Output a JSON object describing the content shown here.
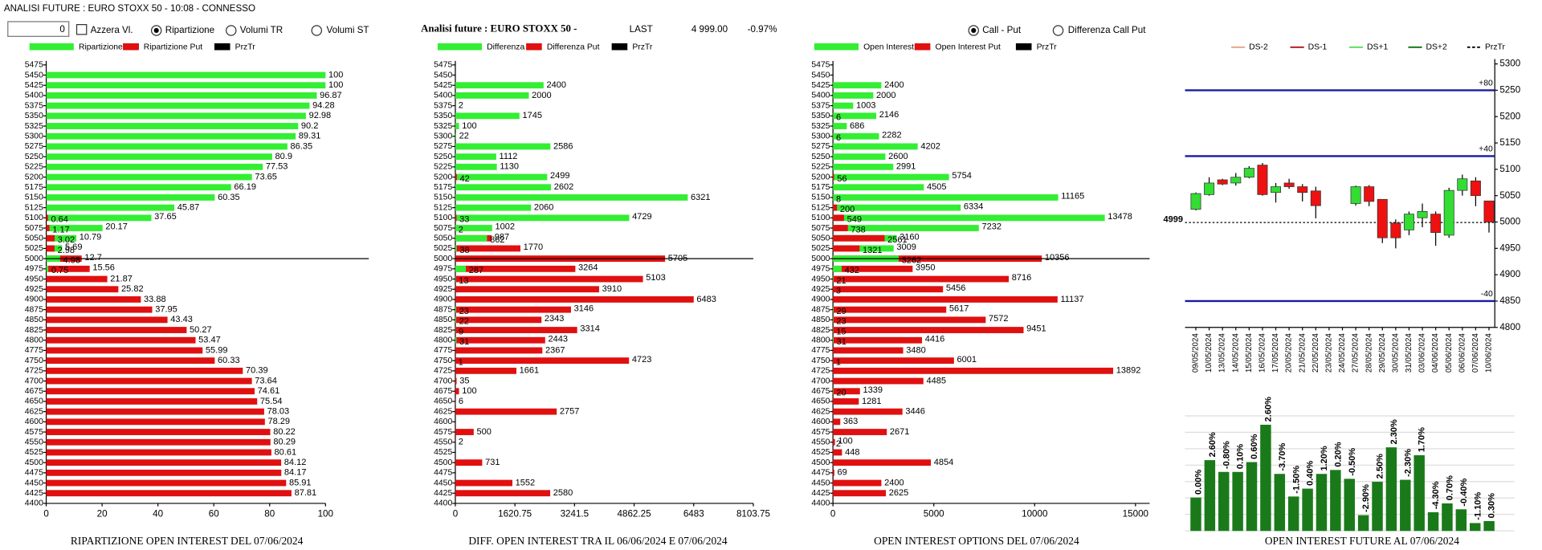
{
  "header": {
    "title": "ANALISI FUTURE : EURO STOXX 50 - 10:08 - CONNESSO",
    "input": "0",
    "checkbox": "Azzera Vl.",
    "radios": [
      "Ripartizione",
      "Volumi TR",
      "Volumi ST"
    ],
    "quote": {
      "label": "Analisi future : EURO STOXX 50 -",
      "last_label": "LAST",
      "last": "4 999.00",
      "change": "-0.97%"
    },
    "view_radios": [
      "Call - Put",
      "Differenza Call Put"
    ]
  },
  "chart_data": [
    {
      "type": "hbar",
      "title": "RIPARTIZIONE OPEN INTEREST DEL 07/06/2024",
      "categories": [
        5475,
        5450,
        5425,
        5400,
        5375,
        5350,
        5325,
        5300,
        5275,
        5250,
        5225,
        5200,
        5175,
        5150,
        5125,
        5100,
        5075,
        5050,
        5025,
        5000,
        4975,
        4950,
        4925,
        4900,
        4875,
        4850,
        4825,
        4800,
        4775,
        4750,
        4725,
        4700,
        4675,
        4650,
        4625,
        4600,
        4575,
        4550,
        4525,
        4500,
        4475,
        4450,
        4425,
        4400
      ],
      "series": [
        {
          "name": "Ripartizione Call",
          "color": "#33ee33",
          "values": [
            null,
            100,
            100,
            96.87,
            94.28,
            92.98,
            90.2,
            89.31,
            86.35,
            80.9,
            77.53,
            73.65,
            66.19,
            60.35,
            45.87,
            37.65,
            20.17,
            10.79,
            5.69,
            4.98,
            0.75,
            null,
            null,
            null,
            null,
            null,
            null,
            null,
            null,
            null,
            null,
            null,
            null,
            null,
            null,
            null,
            null,
            null,
            null,
            null,
            null,
            null,
            null,
            null
          ]
        },
        {
          "name": "Ripartizione Put",
          "color": "#e01010",
          "values": [
            null,
            null,
            null,
            null,
            null,
            null,
            null,
            null,
            null,
            null,
            null,
            null,
            null,
            null,
            null,
            0.64,
            1.17,
            3.02,
            2.98,
            12.7,
            15.56,
            21.87,
            25.82,
            33.88,
            37.95,
            43.43,
            50.27,
            53.47,
            55.99,
            60.33,
            70.39,
            73.64,
            74.61,
            75.54,
            78.03,
            78.29,
            80.22,
            80.29,
            80.61,
            84.12,
            84.17,
            85.91,
            87.81,
            null
          ]
        }
      ],
      "reference": {
        "name": "PrzTr",
        "color": "#000000",
        "category": 5000
      },
      "xlim": [
        0,
        100
      ],
      "xticks": [
        0,
        20,
        40,
        60,
        80,
        100
      ]
    },
    {
      "type": "hbar",
      "title": "DIFF. OPEN INTEREST TRA IL 06/06/2024 E 07/06/2024",
      "categories": [
        5475,
        5450,
        5425,
        5400,
        5375,
        5350,
        5325,
        5300,
        5275,
        5250,
        5225,
        5200,
        5175,
        5150,
        5125,
        5100,
        5075,
        5050,
        5025,
        5000,
        4975,
        4950,
        4925,
        4900,
        4875,
        4850,
        4825,
        4800,
        4775,
        4750,
        4725,
        4700,
        4675,
        4650,
        4625,
        4600,
        4575,
        4550,
        4525,
        4500,
        4475,
        4450,
        4425,
        4400
      ],
      "series": [
        {
          "name": "Differenza Call",
          "color": "#33ee33",
          "values": [
            null,
            null,
            2400,
            2000,
            2,
            1745,
            100,
            22,
            2586,
            1112,
            1130,
            2499,
            2602,
            6321,
            2060,
            4729,
            1002,
            862,
            38,
            null,
            287,
            13,
            null,
            null,
            23,
            22,
            9,
            31,
            null,
            1,
            null,
            null,
            null,
            null,
            null,
            null,
            null,
            null,
            null,
            null,
            null,
            null,
            null,
            null
          ]
        },
        {
          "name": "Differenza Put",
          "color": "#e01010",
          "values": [
            null,
            null,
            null,
            null,
            null,
            null,
            null,
            null,
            null,
            null,
            null,
            42,
            null,
            null,
            null,
            33,
            2,
            987,
            1770,
            5705,
            3264,
            5103,
            3910,
            6483,
            3146,
            2343,
            3314,
            2443,
            2367,
            4723,
            1661,
            35,
            100,
            6,
            2757,
            null,
            500,
            2,
            null,
            731,
            null,
            1552,
            2580,
            null
          ]
        }
      ],
      "reference": {
        "name": "PrzTr",
        "color": "#000000",
        "category": 5000
      },
      "xlim": [
        0,
        8103.75
      ],
      "xticks": [
        0,
        1620.75,
        3241.5,
        4862.25,
        6483,
        8103.75
      ]
    },
    {
      "type": "hbar",
      "title": "OPEN INTEREST OPTIONS DEL 07/06/2024",
      "categories": [
        5475,
        5450,
        5425,
        5400,
        5375,
        5350,
        5325,
        5300,
        5275,
        5250,
        5225,
        5200,
        5175,
        5150,
        5125,
        5100,
        5075,
        5050,
        5025,
        5000,
        4975,
        4950,
        4925,
        4900,
        4875,
        4850,
        4825,
        4800,
        4775,
        4750,
        4725,
        4700,
        4675,
        4650,
        4625,
        4600,
        4575,
        4550,
        4525,
        4500,
        4475,
        4450,
        4425,
        4400
      ],
      "series": [
        {
          "name": "Open Interest Call",
          "color": "#33ee33",
          "values": [
            null,
            null,
            2400,
            2000,
            1003,
            2146,
            686,
            2282,
            4202,
            2600,
            2991,
            5754,
            4505,
            11165,
            6334,
            13478,
            7232,
            3160,
            3009,
            3262,
            432,
            21,
            3,
            null,
            29,
            23,
            15,
            31,
            null,
            1,
            null,
            null,
            20,
            null,
            null,
            null,
            null,
            2,
            null,
            null,
            null,
            null,
            null,
            null
          ]
        },
        {
          "name": "Open Interest Put",
          "color": "#e01010",
          "values": [
            null,
            null,
            null,
            null,
            null,
            6,
            null,
            6,
            null,
            null,
            null,
            56,
            null,
            8,
            200,
            549,
            738,
            2561,
            1321,
            10356,
            3950,
            8716,
            5456,
            11137,
            5617,
            7572,
            9451,
            4416,
            3480,
            6001,
            13892,
            4485,
            1339,
            1281,
            3446,
            363,
            2671,
            100,
            448,
            4854,
            69,
            2400,
            2625,
            null
          ]
        }
      ],
      "reference": {
        "name": "PrzTr",
        "color": "#000000",
        "category": 5000
      },
      "xlim": [
        0,
        15700
      ],
      "xticks": [
        0,
        5000,
        10000,
        15000
      ]
    },
    {
      "type": "candlestick",
      "categories": [
        "09/05/2024",
        "10/05/2024",
        "13/05/2024",
        "14/05/2024",
        "15/05/2024",
        "16/05/2024",
        "17/05/2024",
        "20/05/2024",
        "21/05/2024",
        "22/05/2024",
        "23/05/2024",
        "24/05/2024",
        "27/05/2024",
        "28/05/2024",
        "29/05/2024",
        "30/05/2024",
        "31/05/2024",
        "03/06/2024",
        "04/06/2024",
        "05/06/2024",
        "06/06/2024",
        "07/06/2024",
        "10/06/2024"
      ],
      "open": [
        5024,
        5052,
        5080,
        5074,
        5085,
        5108,
        5056,
        5074,
        5067,
        5059,
        null,
        null,
        5035,
        5067,
        5043,
        4998,
        4985,
        5008,
        5015,
        4975,
        5060,
        5078,
        5040
      ],
      "high": [
        5056,
        5085,
        5082,
        5093,
        5106,
        5112,
        5074,
        5082,
        5072,
        5067,
        null,
        null,
        5069,
        5070,
        5043,
        5005,
        5020,
        5035,
        5020,
        5065,
        5090,
        5085,
        5040
      ],
      "low": [
        5022,
        5050,
        5070,
        5069,
        5083,
        5050,
        5037,
        5063,
        5039,
        5007,
        null,
        null,
        5031,
        5030,
        4960,
        4950,
        4975,
        4990,
        4955,
        4970,
        5050,
        5030,
        4980
      ],
      "close": [
        5054,
        5074,
        5072,
        5085,
        5102,
        5052,
        5067,
        5067,
        5056,
        5031,
        null,
        null,
        5067,
        5039,
        4970,
        4970,
        5015,
        5020,
        4980,
        5060,
        5082,
        5050,
        5000
      ],
      "up_color": "#33dd33",
      "down_color": "#ee1111",
      "legend": [
        {
          "name": "DS-2",
          "color": "#e8a080",
          "dash": false
        },
        {
          "name": "DS-1",
          "color": "#b01010",
          "dash": false
        },
        {
          "name": "DS+1",
          "color": "#55dd55",
          "dash": false
        },
        {
          "name": "DS+2",
          "color": "#107010",
          "dash": false
        },
        {
          "name": "PrzTr",
          "color": "#000000",
          "dash": true
        }
      ],
      "levels": [
        {
          "value": 5250,
          "label": "+80"
        },
        {
          "value": 5125,
          "label": "+40"
        },
        {
          "value": 4850,
          "label": "-40"
        }
      ],
      "level_color": "#1a1aa0",
      "przTr": 4999,
      "ylim": [
        4800,
        5300
      ],
      "yticks": [
        4800,
        4850,
        4900,
        4950,
        5000,
        5050,
        5100,
        5150,
        5200,
        5250,
        5300
      ]
    },
    {
      "type": "bar",
      "title": "OPEN INTEREST FUTURE AL 07/06/2024",
      "color": "#1a7a1a",
      "values": [
        34,
        72,
        60,
        60,
        70,
        108,
        58,
        35,
        43,
        58,
        62,
        53,
        16,
        50,
        85,
        52,
        77,
        19,
        28,
        22,
        8,
        10
      ],
      "labels": [
        "0.00%",
        "2.60%",
        "-0.80%",
        "0.10%",
        "0.60%",
        "2.60%",
        "-3.70%",
        "-1.50%",
        "0.40%",
        "1.20%",
        "0.20%",
        "-0.50%",
        "-2.90%",
        "2.50%",
        "2.30%",
        "-2.30%",
        "1.70%",
        "-4.30%",
        "0.70%",
        "-0.40%",
        "-1.10%",
        "0.30%"
      ],
      "ylim": [
        0,
        120
      ],
      "grid": true
    }
  ]
}
